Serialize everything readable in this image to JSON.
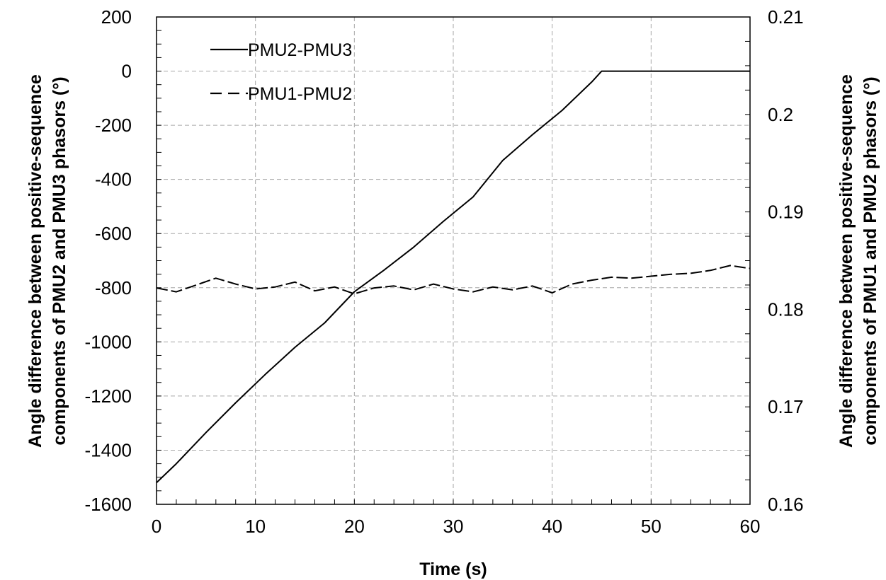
{
  "chart_data": {
    "type": "line",
    "xlabel": "Time  (s)",
    "ylabel_left": [
      "Angle difference between positive-sequence",
      "components of PMU2 and PMU3 phasors  (°)"
    ],
    "ylabel_right": [
      "Angle difference between positive-sequence",
      "components of PMU1 and PMU2 phasors  (°)"
    ],
    "xlim": [
      0,
      60
    ],
    "ylim_left": [
      -1600,
      200
    ],
    "ylim_right": [
      0.16,
      0.21
    ],
    "xticks": [
      "0",
      "10",
      "20",
      "30",
      "40",
      "50",
      "60"
    ],
    "yticks_left": [
      "200",
      "0",
      "-200",
      "-400",
      "-600",
      "-800",
      "-1000",
      "-1200",
      "-1400",
      "-1600"
    ],
    "yticks_right": [
      "0.21",
      "0.2",
      "0.19",
      "0.18",
      "0.17",
      "0.16"
    ],
    "grid": true,
    "legend_position": "top-left",
    "series": [
      {
        "name": "PMU2-PMU3",
        "axis": "left",
        "style": "solid",
        "color": "#000000",
        "x": [
          0,
          2,
          5,
          8,
          11,
          14,
          17,
          20,
          23,
          26,
          29,
          32,
          35,
          38,
          41,
          44,
          45,
          45.5,
          50,
          55,
          60
        ],
        "y": [
          -1520,
          -1450,
          -1335,
          -1225,
          -1120,
          -1020,
          -930,
          -815,
          -735,
          -650,
          -555,
          -465,
          -330,
          -235,
          -145,
          -40,
          0,
          0,
          0,
          0,
          0
        ]
      },
      {
        "name": "PMU1-PMU2",
        "axis": "right",
        "style": "dashed",
        "color": "#000000",
        "x": [
          0,
          2,
          4,
          6,
          8,
          10,
          12,
          14,
          16,
          18,
          20,
          22,
          24,
          26,
          28,
          30,
          32,
          34,
          36,
          38,
          40,
          42,
          44,
          46,
          48,
          50,
          52,
          54,
          56,
          58,
          60
        ],
        "y": [
          0.1822,
          0.1818,
          0.1825,
          0.1832,
          0.1826,
          0.1821,
          0.1823,
          0.1828,
          0.1819,
          0.1823,
          0.1816,
          0.1822,
          0.1824,
          0.182,
          0.1826,
          0.1821,
          0.1818,
          0.1823,
          0.182,
          0.1824,
          0.1817,
          0.1826,
          0.183,
          0.1833,
          0.1832,
          0.1834,
          0.1836,
          0.1837,
          0.184,
          0.1845,
          0.1842
        ]
      }
    ]
  }
}
